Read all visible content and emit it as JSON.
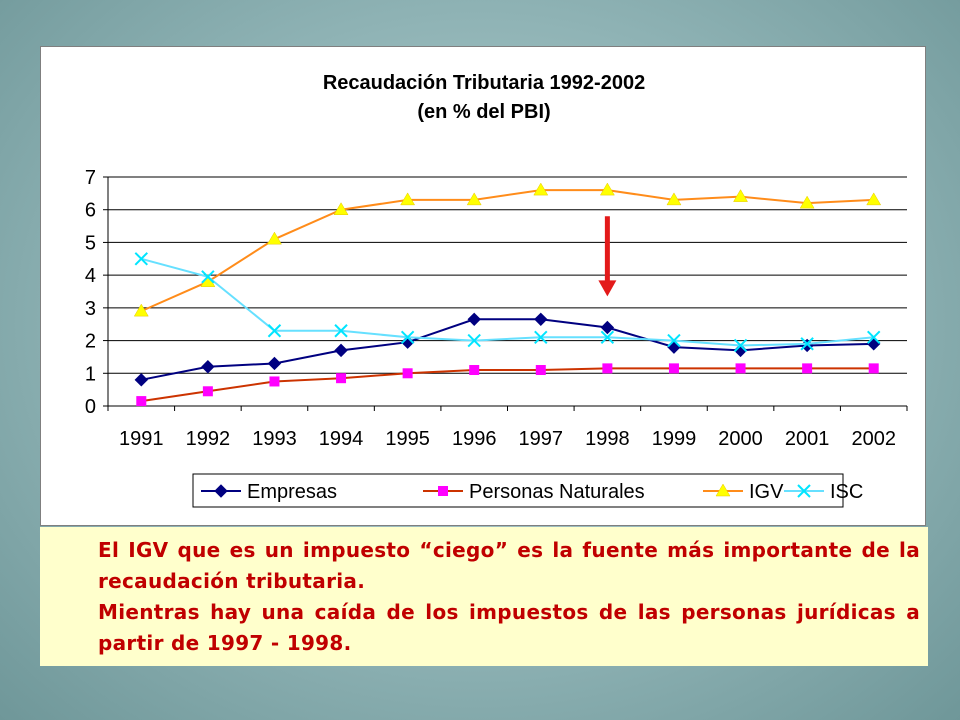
{
  "chart_data": {
    "type": "line",
    "title": "Recaudación Tributaria 1992-2002",
    "subtitle": "(en % del PBI)",
    "categories": [
      "1991",
      "1992",
      "1993",
      "1994",
      "1995",
      "1996",
      "1997",
      "1998",
      "1999",
      "2000",
      "2001",
      "2002"
    ],
    "ylim": [
      0,
      7
    ],
    "yticks": [
      "0",
      "1",
      "2",
      "3",
      "4",
      "5",
      "6",
      "7"
    ],
    "grid": true,
    "legend_position": "bottom",
    "series": [
      {
        "name": "Empresas",
        "color": "#000080",
        "marker": "diamond",
        "values": [
          0.8,
          1.2,
          1.3,
          1.7,
          1.95,
          2.65,
          2.65,
          2.4,
          1.8,
          1.7,
          1.85,
          1.9
        ]
      },
      {
        "name": "Personas Naturales",
        "color": "#ff00ff",
        "line_color": "#cc3300",
        "marker": "square",
        "values": [
          0.15,
          0.45,
          0.75,
          0.85,
          1.0,
          1.1,
          1.1,
          1.15,
          1.15,
          1.15,
          1.15,
          1.15
        ]
      },
      {
        "name": "IGV",
        "color": "#ffff00",
        "line_color": "#ff8c1a",
        "marker": "triangle",
        "values": [
          2.9,
          3.8,
          5.1,
          6.0,
          6.3,
          6.3,
          6.6,
          6.6,
          6.3,
          6.4,
          6.2,
          6.3
        ]
      },
      {
        "name": "ISC",
        "color": "#00e5ff",
        "line_color": "#66e0ff",
        "marker": "x",
        "values": [
          4.5,
          3.95,
          2.3,
          2.3,
          2.1,
          2.0,
          2.1,
          2.1,
          2.0,
          1.85,
          1.9,
          2.1
        ]
      }
    ],
    "annotation": {
      "type": "arrow",
      "color": "#e31a1a",
      "category": "1998",
      "from_y": 5.8,
      "to_y": 3.35
    }
  },
  "notes": {
    "paragraph_1": "El IGV que es un impuesto “ciego” es la fuente más importante de la recaudación tributaria.",
    "paragraph_2": "Mientras hay una caída de los impuestos de las personas jurídicas a partir de 1997 - 1998."
  }
}
